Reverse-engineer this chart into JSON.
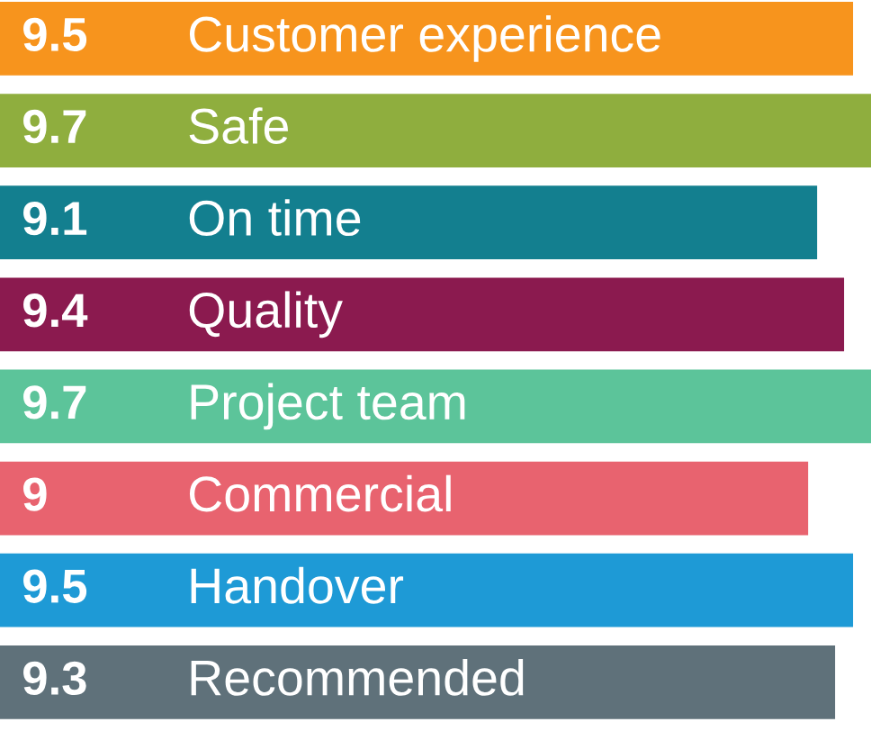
{
  "chart_data": {
    "type": "bar",
    "orientation": "horizontal",
    "data_labels": true,
    "categories": [
      "Customer experience",
      "Safe",
      "On time",
      "Quality",
      "Project team",
      "Commercial",
      "Handover",
      "Recommended"
    ],
    "values": [
      9.5,
      9.7,
      9.1,
      9.4,
      9.7,
      9,
      9.5,
      9.3
    ],
    "colors": [
      "#f7941d",
      "#8fae3e",
      "#137f8f",
      "#8b1a4f",
      "#5cc49a",
      "#e8636f",
      "#1e9ad6",
      "#5f717a"
    ]
  }
}
